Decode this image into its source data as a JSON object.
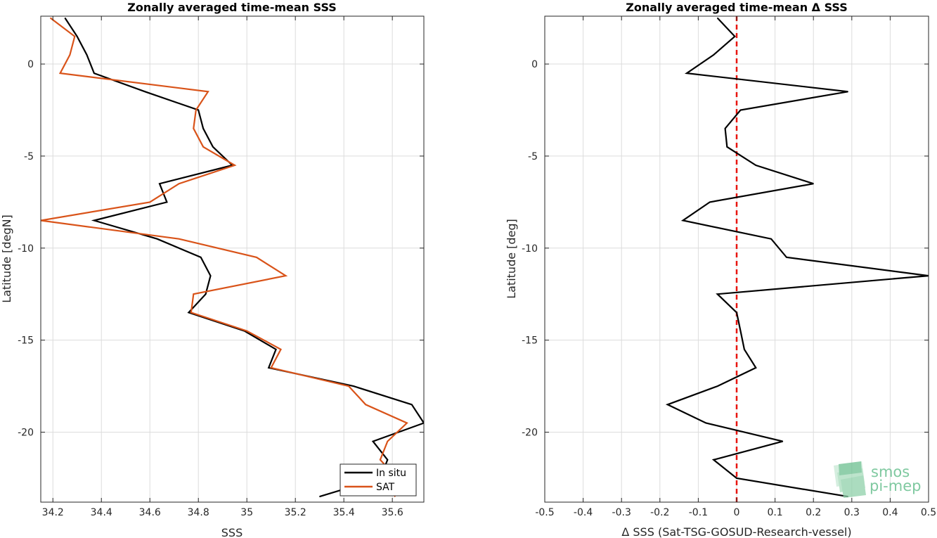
{
  "colors": {
    "in_situ": "#000000",
    "sat": "#d95319",
    "zero_line": "#e8140f",
    "grid": "#dcdcdc",
    "logo": "#7fc9a0"
  },
  "logo": {
    "line1": "smos",
    "line2": "pi-mep"
  },
  "chart_data": [
    {
      "type": "line",
      "title": "Zonally averaged time-mean SSS",
      "xlabel": "SSS",
      "ylabel": "Latitude [degN]",
      "xlim": [
        34.15,
        35.73
      ],
      "ylim": [
        -23.8,
        2.6
      ],
      "xticks": [
        34.2,
        34.4,
        34.6,
        34.8,
        35,
        35.2,
        35.4,
        35.6
      ],
      "xtick_labels": [
        "34.2",
        "34.4",
        "34.6",
        "34.8",
        "35",
        "35.2",
        "35.4",
        "35.6"
      ],
      "yticks": [
        0,
        -5,
        -10,
        -15,
        -20
      ],
      "ytick_labels": [
        "0",
        "-5",
        "-10",
        "-15",
        "-20"
      ],
      "grid": true,
      "legend_position": "bottom-right",
      "series": [
        {
          "name": "In situ",
          "color_key": "in_situ",
          "points": [
            [
              34.25,
              2.5
            ],
            [
              34.3,
              1.5
            ],
            [
              34.34,
              0.5
            ],
            [
              34.37,
              -0.5
            ],
            [
              34.58,
              -1.5
            ],
            [
              34.8,
              -2.5
            ],
            [
              34.82,
              -3.5
            ],
            [
              34.86,
              -4.5
            ],
            [
              34.94,
              -5.5
            ],
            [
              34.64,
              -6.5
            ],
            [
              34.67,
              -7.5
            ],
            [
              34.37,
              -8.5
            ],
            [
              34.63,
              -9.5
            ],
            [
              34.81,
              -10.5
            ],
            [
              34.85,
              -11.5
            ],
            [
              34.83,
              -12.5
            ],
            [
              34.76,
              -13.5
            ],
            [
              34.99,
              -14.5
            ],
            [
              35.12,
              -15.5
            ],
            [
              35.09,
              -16.5
            ],
            [
              35.44,
              -17.5
            ],
            [
              35.68,
              -18.5
            ],
            [
              35.73,
              -19.5
            ],
            [
              35.52,
              -20.5
            ],
            [
              35.58,
              -21.5
            ],
            [
              35.55,
              -22.5
            ],
            [
              35.3,
              -23.5
            ]
          ]
        },
        {
          "name": "SAT",
          "color_key": "sat",
          "points": [
            [
              34.19,
              2.5
            ],
            [
              34.29,
              1.5
            ],
            [
              34.27,
              0.5
            ],
            [
              34.23,
              -0.5
            ],
            [
              34.84,
              -1.5
            ],
            [
              34.79,
              -2.5
            ],
            [
              34.78,
              -3.5
            ],
            [
              34.82,
              -4.5
            ],
            [
              34.95,
              -5.5
            ],
            [
              34.72,
              -6.5
            ],
            [
              34.6,
              -7.5
            ],
            [
              34.15,
              -8.5
            ],
            [
              34.72,
              -9.5
            ],
            [
              35.04,
              -10.5
            ],
            [
              35.16,
              -11.5
            ],
            [
              34.78,
              -12.5
            ],
            [
              34.77,
              -13.5
            ],
            [
              35.0,
              -14.5
            ],
            [
              35.14,
              -15.5
            ],
            [
              35.1,
              -16.5
            ],
            [
              35.42,
              -17.5
            ],
            [
              35.49,
              -18.5
            ],
            [
              35.66,
              -19.5
            ],
            [
              35.58,
              -20.5
            ],
            [
              35.55,
              -21.5
            ],
            [
              35.62,
              -22.5
            ],
            [
              35.61,
              -23.5
            ]
          ]
        }
      ]
    },
    {
      "type": "line",
      "title": "Zonally averaged time-mean Δ SSS",
      "xlabel": "Δ SSS (Sat-TSG-GOSUD-Research-vessel)",
      "ylabel": "Latitude [deg]",
      "xlim": [
        -0.5,
        0.5
      ],
      "ylim": [
        -23.8,
        2.6
      ],
      "xticks": [
        -0.5,
        -0.4,
        -0.3,
        -0.2,
        -0.1,
        0,
        0.1,
        0.2,
        0.3,
        0.4,
        0.5
      ],
      "xtick_labels": [
        "-0.5",
        "-0.4",
        "-0.3",
        "-0.2",
        "-0.1",
        "0",
        "0.1",
        "0.2",
        "0.3",
        "0.4",
        "0.5"
      ],
      "yticks": [
        0,
        -5,
        -10,
        -15,
        -20
      ],
      "ytick_labels": [
        "0",
        "-5",
        "-10",
        "-15",
        "-20"
      ],
      "grid": true,
      "reference_line_x": 0,
      "series": [
        {
          "color_key": "in_situ",
          "points": [
            [
              -0.05,
              2.5
            ],
            [
              -0.005,
              1.5
            ],
            [
              -0.06,
              0.5
            ],
            [
              -0.13,
              -0.5
            ],
            [
              0.29,
              -1.5
            ],
            [
              0.01,
              -2.5
            ],
            [
              -0.03,
              -3.5
            ],
            [
              -0.025,
              -4.5
            ],
            [
              0.05,
              -5.5
            ],
            [
              0.2,
              -6.5
            ],
            [
              -0.07,
              -7.5
            ],
            [
              -0.14,
              -8.5
            ],
            [
              0.09,
              -9.5
            ],
            [
              0.13,
              -10.5
            ],
            [
              0.5,
              -11.5
            ],
            [
              -0.05,
              -12.5
            ],
            [
              0.0,
              -13.5
            ],
            [
              0.01,
              -14.5
            ],
            [
              0.02,
              -15.5
            ],
            [
              0.05,
              -16.5
            ],
            [
              -0.05,
              -17.5
            ],
            [
              -0.18,
              -18.5
            ],
            [
              -0.08,
              -19.5
            ],
            [
              0.12,
              -20.5
            ],
            [
              -0.06,
              -21.5
            ],
            [
              0.0,
              -22.5
            ],
            [
              0.29,
              -23.5
            ]
          ]
        }
      ]
    }
  ]
}
